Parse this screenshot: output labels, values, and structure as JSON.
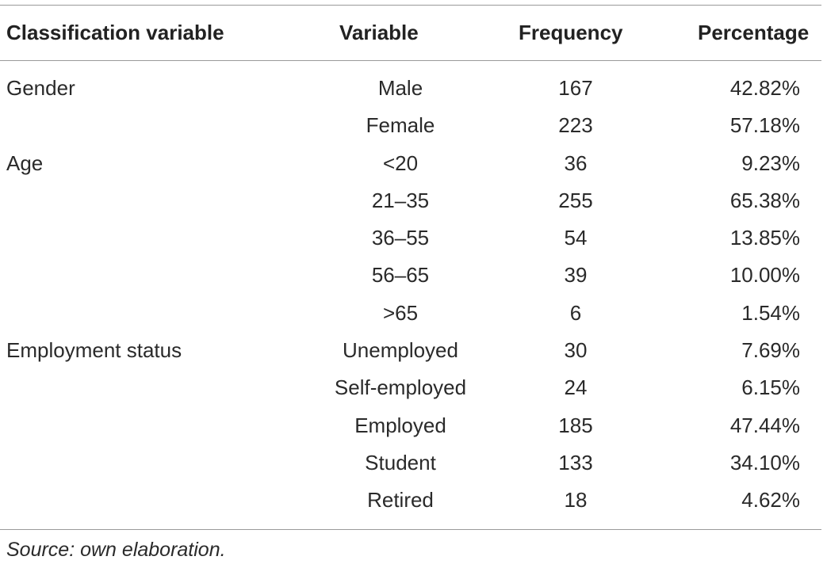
{
  "table": {
    "headers": {
      "classification_variable": "Classification variable",
      "variable": "Variable",
      "frequency": "Frequency",
      "percentage": "Percentage"
    },
    "rows": [
      {
        "classification": "Gender",
        "variable": "Male",
        "frequency": "167",
        "percentage": "42.82%"
      },
      {
        "classification": "",
        "variable": "Female",
        "frequency": "223",
        "percentage": "57.18%"
      },
      {
        "classification": "Age",
        "variable": "<20",
        "frequency": "36",
        "percentage": "9.23%"
      },
      {
        "classification": "",
        "variable": "21–35",
        "frequency": "255",
        "percentage": "65.38%"
      },
      {
        "classification": "",
        "variable": "36–55",
        "frequency": "54",
        "percentage": "13.85%"
      },
      {
        "classification": "",
        "variable": "56–65",
        "frequency": "39",
        "percentage": "10.00%"
      },
      {
        "classification": "",
        "variable": ">65",
        "frequency": "6",
        "percentage": "1.54%"
      },
      {
        "classification": "Employment status",
        "variable": "Unemployed",
        "frequency": "30",
        "percentage": "7.69%"
      },
      {
        "classification": "",
        "variable": "Self-employed",
        "frequency": "24",
        "percentage": "6.15%"
      },
      {
        "classification": "",
        "variable": "Employed",
        "frequency": "185",
        "percentage": "47.44%"
      },
      {
        "classification": "",
        "variable": "Student",
        "frequency": "133",
        "percentage": "34.10%"
      },
      {
        "classification": "",
        "variable": "Retired",
        "frequency": "18",
        "percentage": "4.62%"
      }
    ]
  },
  "source_note": "Source: own elaboration."
}
